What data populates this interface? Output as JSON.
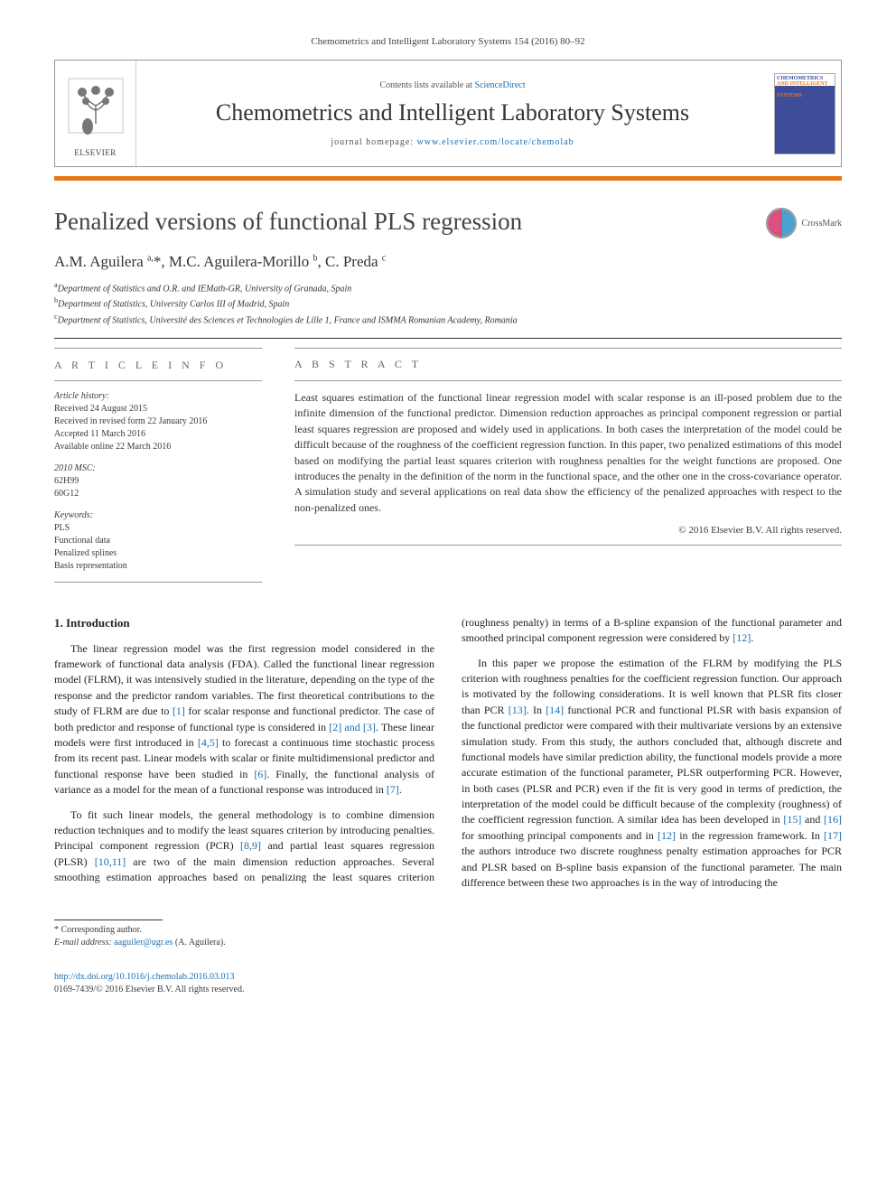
{
  "header": {
    "journal_ref": "Chemometrics and Intelligent Laboratory Systems 154 (2016) 80–92",
    "contents_prefix": "Contents lists available at ",
    "contents_link": "ScienceDirect",
    "journal_name": "Chemometrics and Intelligent Laboratory Systems",
    "homepage_prefix": "journal homepage: ",
    "homepage_url": "www.elsevier.com/locate/chemolab",
    "publisher_logo_text": "ELSEVIER",
    "cover_lines": [
      "CHEMOMETRICS",
      "AND INTELLIGENT",
      "LABORATORY",
      "SYSTEMS"
    ]
  },
  "colors": {
    "accent": "#e67817",
    "link": "#1a6fb3",
    "crossmark_left": "#d4326b",
    "crossmark_right": "#2d8fc9",
    "cover_blue": "#3d4d99"
  },
  "title": "Penalized versions of functional PLS regression",
  "crossmark_label": "CrossMark",
  "authors_html": "A.M. Aguilera <sup>a,</sup><span class='star'>*</span>, M.C. Aguilera-Morillo <sup>b</sup>, C. Preda <sup>c</sup>",
  "affiliations": [
    {
      "sup": "a",
      "text": "Department of Statistics and O.R. and IEMath-GR, University of Granada, Spain"
    },
    {
      "sup": "b",
      "text": "Department of Statistics, University Carlos III of Madrid, Spain"
    },
    {
      "sup": "c",
      "text": "Department of Statistics, Université des Sciences et Technologies de Lille 1, France and ISMMA Romanian Academy, Romania"
    }
  ],
  "article_info": {
    "heading": "A R T I C L E   I N F O",
    "history_label": "Article history:",
    "history": [
      "Received 24 August 2015",
      "Received in revised form 22 January 2016",
      "Accepted 11 March 2016",
      "Available online 22 March 2016"
    ],
    "msc_label": "2010 MSC:",
    "msc": [
      "62H99",
      "60G12"
    ],
    "keywords_label": "Keywords:",
    "keywords": [
      "PLS",
      "Functional data",
      "Penalized splines",
      "Basis representation"
    ]
  },
  "abstract": {
    "heading": "A B S T R A C T",
    "text": "Least squares estimation of the functional linear regression model with scalar response is an ill-posed problem due to the infinite dimension of the functional predictor. Dimension reduction approaches as principal component regression or partial least squares regression are proposed and widely used in applications. In both cases the interpretation of the model could be difficult because of the roughness of the coefficient regression function. In this paper, two penalized estimations of this model based on modifying the partial least squares criterion with roughness penalties for the weight functions are proposed. One introduces the penalty in the definition of the norm in the functional space, and the other one in the cross-covariance operator. A simulation study and several applications on real data show the efficiency of the penalized approaches with respect to the non-penalized ones.",
    "copyright": "© 2016 Elsevier B.V. All rights reserved."
  },
  "body": {
    "section_heading": "1. Introduction",
    "para1_pre": "The linear regression model was the first regression model considered in the framework of functional data analysis (FDA). Called the functional linear regression model (FLRM), it was intensively studied in the literature, depending on the type of the response and the predictor random variables. The first theoretical contributions to the study of FLRM are due to ",
    "ref1": "[1]",
    "para1_mid1": " for scalar response and functional predictor. The case of both predictor and response of functional type is considered in ",
    "ref2_3": "[2] and [3]",
    "para1_mid2": ". These linear models were first introduced in ",
    "ref4_5": "[4,5]",
    "para1_mid3": " to forecast a continuous time stochastic process from its recent past. Linear models with scalar or finite multidimensional predictor and functional response have been studied in ",
    "ref6": "[6]",
    "para1_mid4": ". Finally, the functional analysis of variance as a model for the mean of a functional response was introduced in ",
    "ref7": "[7]",
    "para1_end": ".",
    "para2_pre": "To fit such linear models, the general methodology is to combine dimension reduction techniques and to modify the least squares criterion by introducing penalties. Principal component regression (PCR) ",
    "ref8_9": "[8,9]",
    "para2_mid": " and partial least squares regression (PLSR) ",
    "ref10_11": "[10,11]",
    "para2_tail": " are two of the main dimension reduction approaches. Several smoothing estimation approaches based on penalizing the least squares criterion (roughness penalty) in terms of a B-spline expansion of the functional parameter and smoothed principal component regression were considered by ",
    "ref12a": "[12]",
    "para2_end": ".",
    "para3_pre": "In this paper we propose the estimation of the FLRM by modifying the PLS criterion with roughness penalties for the coefficient regression function. Our approach is motivated by the following considerations. It is well known that PLSR fits closer than PCR ",
    "ref13": "[13]",
    "para3_mid1": ". In ",
    "ref14": "[14]",
    "para3_mid2": " functional PCR and functional PLSR with basis expansion of the functional predictor were compared with their multivariate versions by an extensive simulation study. From this study, the authors concluded that, although discrete and functional models have similar prediction ability, the functional models provide a more accurate estimation of the functional parameter, PLSR outperforming PCR. However, in both cases (PLSR and PCR) even if the fit is very good in terms of prediction, the interpretation of the model could be difficult because of the complexity (roughness) of the coefficient regression function. A similar idea has been developed in ",
    "ref15": "[15]",
    "para3_and": " and ",
    "ref16": "[16]",
    "para3_mid3": " for smoothing principal components and in ",
    "ref12b": "[12]",
    "para3_mid4": " in the regression framework. In ",
    "ref17": "[17]",
    "para3_end": " the authors introduce two discrete roughness penalty estimation approaches for PCR and PLSR based on B-spline basis expansion of the functional parameter. The main difference between these two approaches is in the way of introducing the"
  },
  "footnote": {
    "corr_label": "* Corresponding author.",
    "email_label": "E-mail address:",
    "email": "aaguiler@ugr.es",
    "email_person": "(A. Aguilera)."
  },
  "doi": {
    "url": "http://dx.doi.org/10.1016/j.chemolab.2016.03.013",
    "issn_line": "0169-7439/© 2016 Elsevier B.V. All rights reserved."
  }
}
